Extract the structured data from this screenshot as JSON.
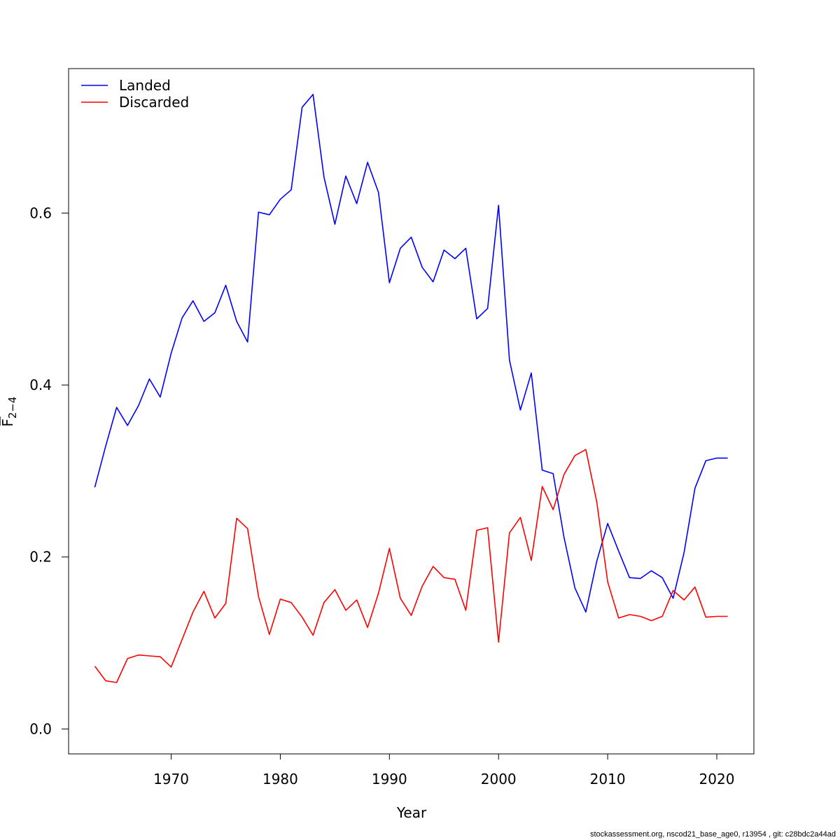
{
  "chart_data": {
    "type": "line",
    "xlabel": "Year",
    "ylabel": {
      "main": "F",
      "sub": "2−4"
    },
    "xlim": [
      1960.6,
      2023.4
    ],
    "ylim": [
      -0.029,
      0.768
    ],
    "xticks": [
      1970,
      1980,
      1990,
      2000,
      2010,
      2020
    ],
    "yticks": [
      0.0,
      0.2,
      0.4,
      0.6
    ],
    "ytick_labels": [
      "0.0",
      "0.2",
      "0.4",
      "0.6"
    ],
    "legend_position": "top-left",
    "grid": false,
    "x": [
      1963,
      1964,
      1965,
      1966,
      1967,
      1968,
      1969,
      1970,
      1971,
      1972,
      1973,
      1974,
      1975,
      1976,
      1977,
      1978,
      1979,
      1980,
      1981,
      1982,
      1983,
      1984,
      1985,
      1986,
      1987,
      1988,
      1989,
      1990,
      1991,
      1992,
      1993,
      1994,
      1995,
      1996,
      1997,
      1998,
      1999,
      2000,
      2001,
      2002,
      2003,
      2004,
      2005,
      2006,
      2007,
      2008,
      2009,
      2010,
      2011,
      2012,
      2013,
      2014,
      2015,
      2016,
      2017,
      2018,
      2019,
      2020,
      2021
    ],
    "series": [
      {
        "name": "Landed",
        "color": "#0000ff",
        "values": [
          0.281,
          0.329,
          0.374,
          0.353,
          0.376,
          0.407,
          0.386,
          0.437,
          0.478,
          0.498,
          0.474,
          0.484,
          0.516,
          0.474,
          0.45,
          0.601,
          0.598,
          0.616,
          0.627,
          0.723,
          0.738,
          0.642,
          0.587,
          0.643,
          0.611,
          0.659,
          0.624,
          0.519,
          0.559,
          0.572,
          0.537,
          0.52,
          0.557,
          0.547,
          0.559,
          0.477,
          0.489,
          0.609,
          0.429,
          0.371,
          0.414,
          0.301,
          0.297,
          0.223,
          0.164,
          0.136,
          0.195,
          0.239,
          0.207,
          0.176,
          0.175,
          0.184,
          0.176,
          0.152,
          0.205,
          0.28,
          0.312,
          0.315,
          0.315
        ]
      },
      {
        "name": "Discarded",
        "color": "#ff0000",
        "values": [
          0.073,
          0.056,
          0.054,
          0.082,
          0.086,
          0.085,
          0.084,
          0.072,
          0.104,
          0.136,
          0.16,
          0.129,
          0.146,
          0.245,
          0.233,
          0.154,
          0.11,
          0.151,
          0.147,
          0.13,
          0.109,
          0.147,
          0.162,
          0.138,
          0.15,
          0.118,
          0.158,
          0.21,
          0.152,
          0.132,
          0.166,
          0.189,
          0.176,
          0.174,
          0.138,
          0.231,
          0.234,
          0.101,
          0.228,
          0.246,
          0.196,
          0.282,
          0.255,
          0.296,
          0.318,
          0.325,
          0.264,
          0.171,
          0.129,
          0.133,
          0.131,
          0.126,
          0.131,
          0.161,
          0.15,
          0.165,
          0.13,
          0.131,
          0.131
        ]
      }
    ]
  },
  "footer": "stockassessment.org, nscod21_base_age0, r13954 , git: c28bdc2a44ad"
}
